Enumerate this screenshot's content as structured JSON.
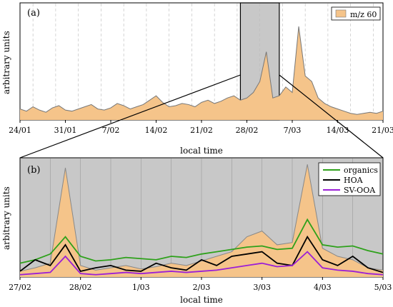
{
  "chart_data": [
    {
      "type": "area",
      "panel_label": "(a)",
      "ylabel": "arbitrary units",
      "xlabel": "local time",
      "x_ticks": [
        "24/01",
        "31/01",
        "7/02",
        "14/02",
        "21/02",
        "28/02",
        "7/03",
        "14/03",
        "21/03"
      ],
      "x_range_days": [
        "24/01",
        "21/03"
      ],
      "highlight_range": [
        "27/02",
        "5/03"
      ],
      "legend": [
        {
          "name": "m/z 60",
          "color": "#f5c48a"
        }
      ],
      "legend_position": "top-right",
      "dashed_vertical_lines": true,
      "series": [
        {
          "name": "m/z 60",
          "style": "filled-area",
          "fill": "#f5c48a",
          "line": "#777777",
          "x_days_since_24_01": [
            0,
            1,
            2,
            3,
            4,
            5,
            6,
            7,
            8,
            9,
            10,
            11,
            12,
            13,
            14,
            15,
            16,
            17,
            18,
            19,
            20,
            21,
            22,
            23,
            24,
            25,
            26,
            27,
            28,
            29,
            30,
            31,
            32,
            33,
            34,
            35,
            36,
            37,
            38,
            39,
            40,
            41,
            42,
            43,
            44,
            45,
            46,
            47,
            48,
            49,
            50,
            51,
            52,
            53,
            54,
            55,
            56
          ],
          "y": [
            0.1,
            0.08,
            0.12,
            0.09,
            0.07,
            0.11,
            0.13,
            0.09,
            0.08,
            0.1,
            0.12,
            0.14,
            0.1,
            0.09,
            0.11,
            0.15,
            0.13,
            0.1,
            0.12,
            0.14,
            0.18,
            0.22,
            0.16,
            0.12,
            0.13,
            0.15,
            0.14,
            0.12,
            0.16,
            0.18,
            0.15,
            0.17,
            0.2,
            0.22,
            0.18,
            0.2,
            0.25,
            0.35,
            0.62,
            0.2,
            0.22,
            0.3,
            0.25,
            0.85,
            0.4,
            0.35,
            0.2,
            0.15,
            0.12,
            0.1,
            0.08,
            0.06,
            0.05,
            0.06,
            0.07,
            0.06,
            0.08
          ]
        }
      ]
    },
    {
      "type": "line",
      "panel_label": "(b)",
      "ylabel": "arbitrary units",
      "xlabel": "local time",
      "x_ticks": [
        "27/02",
        "28/02",
        "1/03",
        "2/03",
        "3/03",
        "4/03",
        "5/03"
      ],
      "legend": [
        {
          "name": "organics",
          "color": "#2ea11b"
        },
        {
          "name": "HOA",
          "color": "#000000"
        },
        {
          "name": "SV-OOA",
          "color": "#9b1fd6"
        }
      ],
      "legend_position": "top-right",
      "background": "#c8c8c8",
      "series": [
        {
          "name": "m/z 60 (filled)",
          "fill": "#f5c48a",
          "line": "#888888",
          "x_days_since_27_02": [
            0,
            0.25,
            0.5,
            0.75,
            1,
            1.25,
            1.5,
            1.75,
            2,
            2.25,
            2.5,
            2.75,
            3,
            3.25,
            3.5,
            3.75,
            4,
            4.25,
            4.5,
            4.75,
            5,
            5.25,
            5.5,
            5.75,
            6
          ],
          "y": [
            0.05,
            0.08,
            0.12,
            0.95,
            0.1,
            0.06,
            0.08,
            0.1,
            0.07,
            0.09,
            0.12,
            0.1,
            0.14,
            0.18,
            0.22,
            0.35,
            0.4,
            0.28,
            0.3,
            0.98,
            0.25,
            0.18,
            0.15,
            0.08,
            0.06
          ]
        },
        {
          "name": "organics",
          "color": "#2ea11b",
          "x_days_since_27_02": [
            0,
            0.25,
            0.5,
            0.75,
            1,
            1.25,
            1.5,
            1.75,
            2,
            2.25,
            2.5,
            2.75,
            3,
            3.25,
            3.5,
            3.75,
            4,
            4.25,
            4.5,
            4.75,
            5,
            5.25,
            5.5,
            5.75,
            6
          ],
          "y": [
            0.12,
            0.15,
            0.2,
            0.35,
            0.18,
            0.14,
            0.15,
            0.17,
            0.16,
            0.15,
            0.18,
            0.17,
            0.2,
            0.22,
            0.24,
            0.26,
            0.27,
            0.24,
            0.25,
            0.5,
            0.28,
            0.26,
            0.27,
            0.23,
            0.2
          ]
        },
        {
          "name": "HOA",
          "color": "#000000",
          "x_days_since_27_02": [
            0,
            0.25,
            0.5,
            0.75,
            1,
            1.25,
            1.5,
            1.75,
            2,
            2.25,
            2.5,
            2.75,
            3,
            3.25,
            3.5,
            3.75,
            4,
            4.25,
            4.5,
            4.75,
            5,
            5.25,
            5.5,
            5.75,
            6
          ],
          "y": [
            0.05,
            0.15,
            0.1,
            0.28,
            0.05,
            0.08,
            0.1,
            0.06,
            0.05,
            0.12,
            0.08,
            0.06,
            0.15,
            0.1,
            0.18,
            0.2,
            0.22,
            0.12,
            0.1,
            0.35,
            0.15,
            0.1,
            0.18,
            0.08,
            0.04
          ]
        },
        {
          "name": "SV-OOA",
          "color": "#9b1fd6",
          "x_days_since_27_02": [
            0,
            0.25,
            0.5,
            0.75,
            1,
            1.25,
            1.5,
            1.75,
            2,
            2.25,
            2.5,
            2.75,
            3,
            3.25,
            3.5,
            3.75,
            4,
            4.25,
            4.5,
            4.75,
            5,
            5.25,
            5.5,
            5.75,
            6
          ],
          "y": [
            0.02,
            0.03,
            0.04,
            0.18,
            0.03,
            0.02,
            0.03,
            0.04,
            0.03,
            0.04,
            0.05,
            0.04,
            0.05,
            0.06,
            0.08,
            0.1,
            0.12,
            0.09,
            0.1,
            0.22,
            0.08,
            0.06,
            0.05,
            0.03,
            0.02
          ]
        }
      ]
    }
  ]
}
